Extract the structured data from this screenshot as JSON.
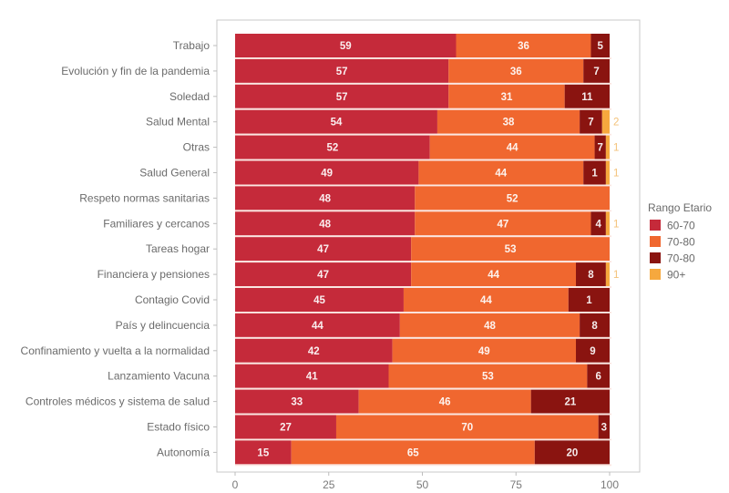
{
  "chart_data": {
    "type": "bar",
    "orientation": "horizontal",
    "stacked": true,
    "title": "",
    "xlabel": "",
    "ylabel": "",
    "xlim": [
      0,
      100
    ],
    "x_ticks": [
      0,
      25,
      50,
      75,
      100
    ],
    "grid": false,
    "legend_position": "right",
    "legend": {
      "title": "Rango Etario",
      "entries": [
        "60-70",
        "70-80",
        "70-80",
        "90+"
      ]
    },
    "colors": [
      "#c52a3a",
      "#f0672f",
      "#8a1410",
      "#f6a83e"
    ],
    "categories": [
      "Trabajo",
      "Evolución y fin de la pandemia",
      "Soledad",
      "Salud Mental",
      "Otras",
      "Salud General",
      "Respeto normas sanitarias",
      "Familiares y cercanos",
      "Tareas hogar",
      "Financiera y pensiones",
      "Contagio Covid",
      "País y delincuencia",
      "Confinamiento y vuelta a la normalidad",
      "Lanzamiento Vacuna",
      "Controles médicos y sistema de salud",
      "Estado físico",
      "Autonomía"
    ],
    "series": [
      {
        "name": "60-70",
        "values": [
          59,
          57,
          57,
          54,
          52,
          49,
          48,
          48,
          47,
          47,
          45,
          44,
          42,
          41,
          33,
          27,
          15
        ]
      },
      {
        "name": "70-80",
        "values": [
          36,
          36,
          31,
          38,
          44,
          44,
          52,
          47,
          53,
          44,
          44,
          48,
          49,
          53,
          46,
          70,
          65
        ]
      },
      {
        "name": "70-80 (dark)",
        "values": [
          5,
          7,
          11,
          7,
          7,
          1,
          null,
          4,
          null,
          8,
          1,
          8,
          9,
          6,
          21,
          3,
          20
        ]
      },
      {
        "name": "90+",
        "values": [
          null,
          null,
          null,
          2,
          1,
          1,
          null,
          1,
          null,
          1,
          null,
          null,
          null,
          null,
          null,
          null,
          null
        ]
      }
    ]
  }
}
